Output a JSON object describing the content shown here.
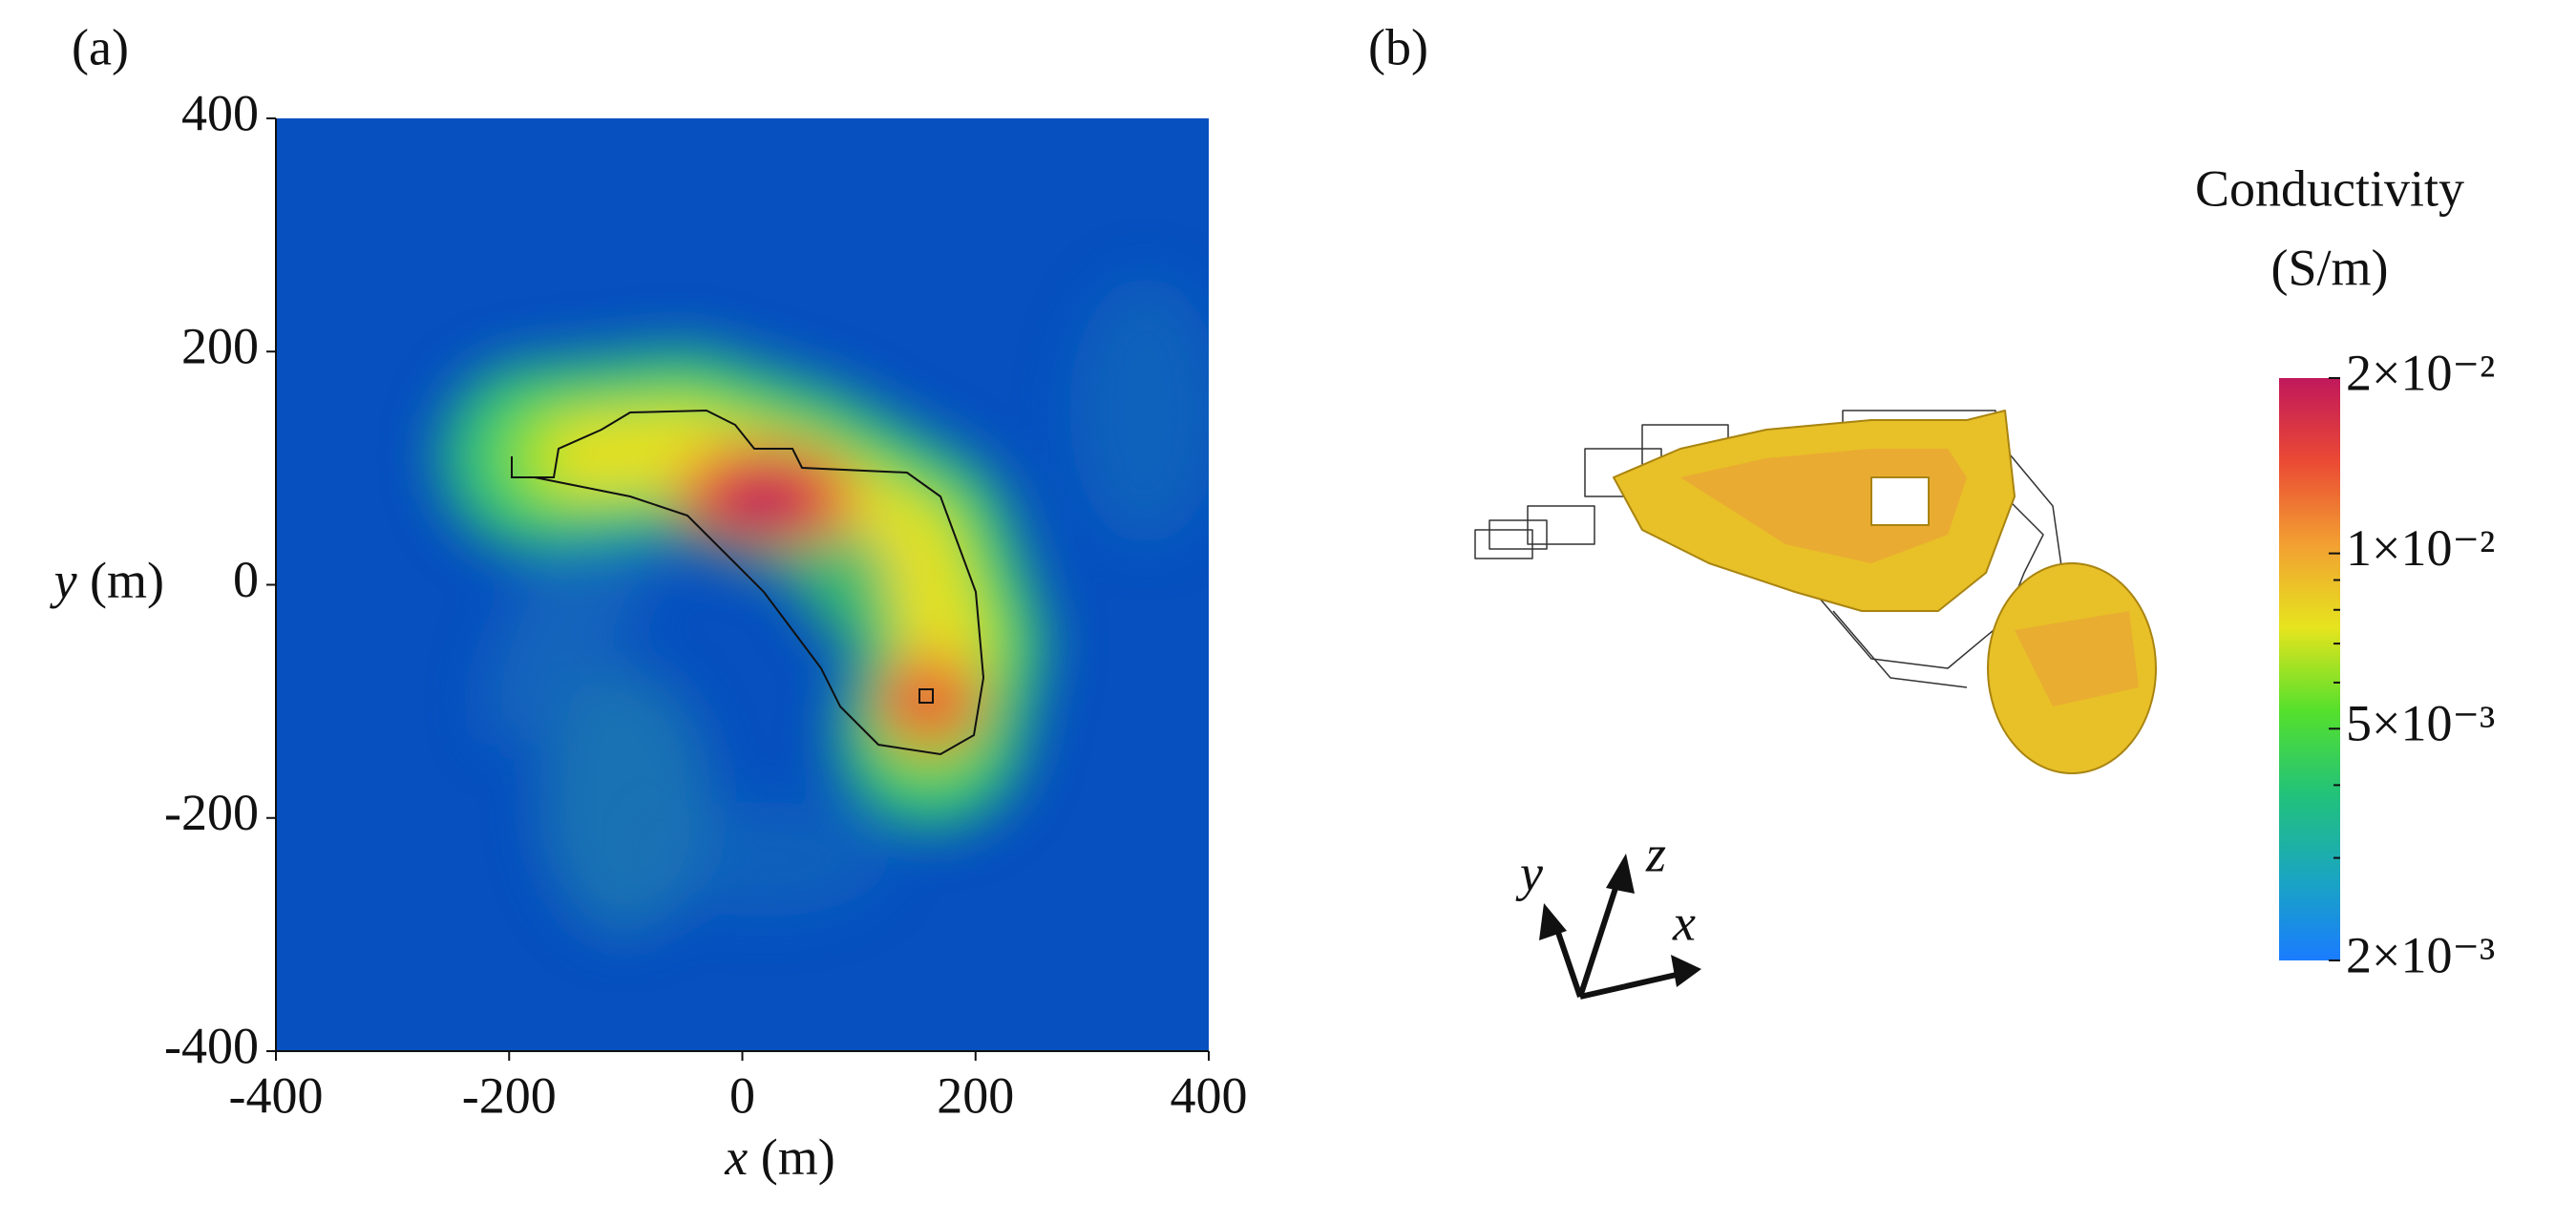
{
  "panel_a": {
    "label": "(a)",
    "x_axis": {
      "variable": "x",
      "unit": "(m)",
      "lim": [
        -400,
        400
      ],
      "ticks": [
        -400,
        -200,
        0,
        200,
        400
      ]
    },
    "y_axis": {
      "variable": "y",
      "unit": "(m)",
      "lim": [
        -400,
        400
      ],
      "ticks": [
        -400,
        -200,
        0,
        200,
        400
      ]
    }
  },
  "panel_b": {
    "label": "(b)",
    "triad": {
      "x": "x",
      "y": "y",
      "z": "z"
    }
  },
  "colorbar": {
    "title": "Conductivity",
    "unit": "(S/m)",
    "scale": "log",
    "lim": [
      0.002,
      0.02
    ],
    "ticks": [
      {
        "value": 0.02,
        "label": "2×10⁻²"
      },
      {
        "value": 0.01,
        "label": "1×10⁻²"
      },
      {
        "value": 0.005,
        "label": "5×10⁻³"
      },
      {
        "value": 0.002,
        "label": "2×10⁻³"
      }
    ],
    "minor_ticks": [
      0.003,
      0.004,
      0.006,
      0.007,
      0.008,
      0.009
    ],
    "colormap": [
      "#1a7cff",
      "#1aa6c0",
      "#22c27a",
      "#55e02c",
      "#e6e41e",
      "#f2a032",
      "#ea4a34",
      "#c0185c"
    ]
  }
}
